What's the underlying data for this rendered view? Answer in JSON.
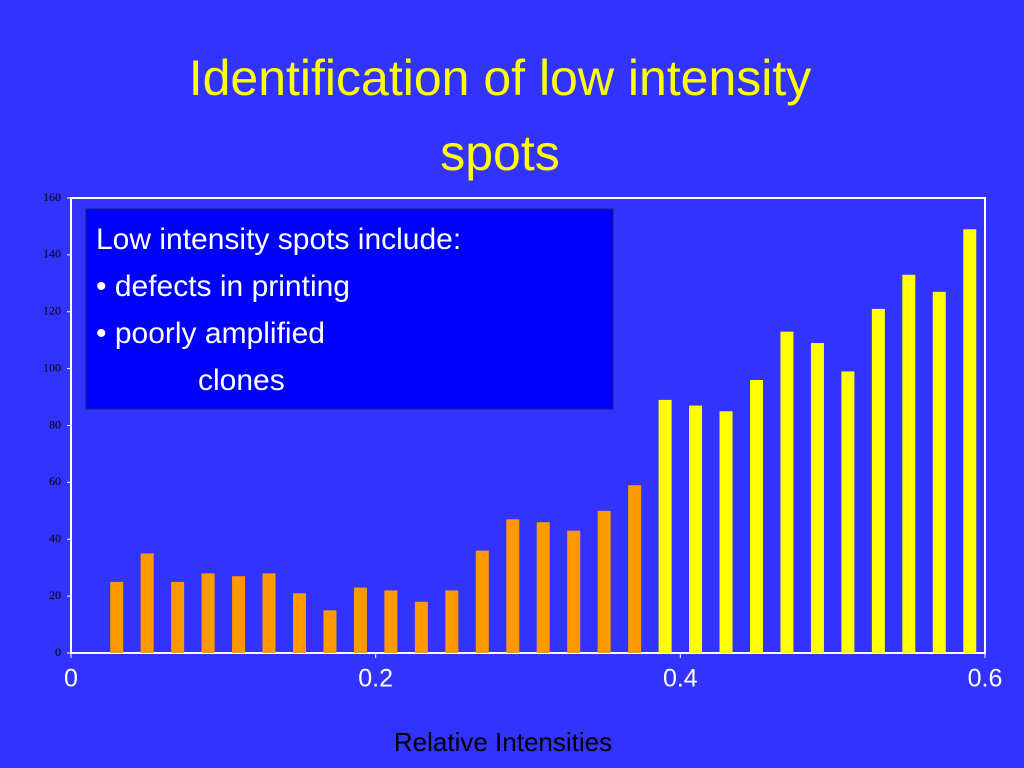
{
  "chart_data": {
    "type": "bar",
    "title": [
      "Identification of low intensity",
      "spots"
    ],
    "xlabel": "Relative Intensities",
    "annotation": [
      "Low intensity spots include:",
      "• defects in printing",
      "• poorly amplified",
      "clones"
    ],
    "series": [
      {
        "color": "#ff9900",
        "x": [
          0.03,
          0.05,
          0.07,
          0.09,
          0.11,
          0.13,
          0.15,
          0.17,
          0.19,
          0.21,
          0.23,
          0.25,
          0.27,
          0.29,
          0.31,
          0.33,
          0.35,
          0.37
        ],
        "values": [
          25,
          35,
          25,
          28,
          27,
          28,
          21,
          15,
          23,
          22,
          18,
          22,
          36,
          47,
          46,
          43,
          50,
          59
        ]
      },
      {
        "color": "#ffff00",
        "x": [
          0.39,
          0.41,
          0.43,
          0.45,
          0.47,
          0.49,
          0.51,
          0.53,
          0.55,
          0.57,
          0.59
        ],
        "values": [
          89,
          87,
          85,
          96,
          113,
          109,
          99,
          121,
          133,
          127,
          149
        ]
      }
    ],
    "xlim": [
      0,
      0.6
    ],
    "xticks": [
      0,
      0.2,
      0.4,
      0.6
    ],
    "ylim": [
      0,
      160
    ],
    "yticks": [
      0,
      20,
      40,
      60,
      80,
      100,
      120,
      140,
      160
    ]
  }
}
